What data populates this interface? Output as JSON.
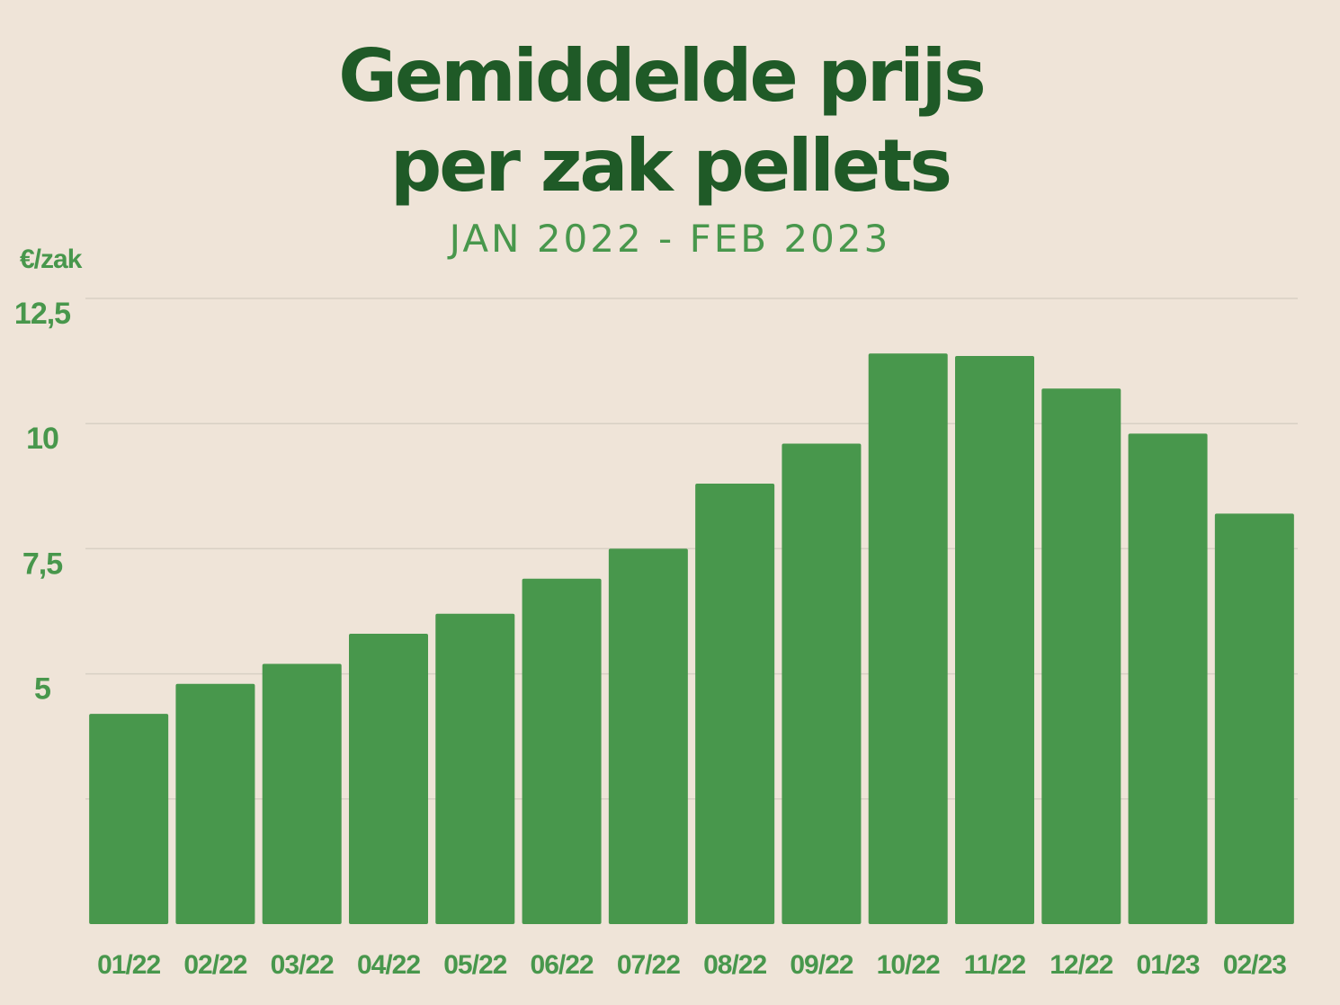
{
  "chart_data": {
    "type": "bar",
    "title_line1": "Gemiddelde prijs",
    "title_line2": "per zak pellets",
    "subtitle": "JAN 2022 - FEB 2023",
    "ylabel": "€/zak",
    "xlabel": "",
    "categories": [
      "01/22",
      "02/22",
      "03/22",
      "04/22",
      "05/22",
      "06/22",
      "07/22",
      "08/22",
      "09/22",
      "10/22",
      "11/22",
      "12/22",
      "01/23",
      "02/23"
    ],
    "values": [
      4.2,
      4.8,
      5.2,
      5.8,
      6.2,
      6.9,
      7.5,
      8.8,
      9.6,
      11.4,
      11.35,
      10.7,
      9.8,
      8.2
    ],
    "ylim": [
      0,
      12.5
    ],
    "yticks": [
      {
        "value": 12.5,
        "label": "12,5"
      },
      {
        "value": 10,
        "label": "10"
      },
      {
        "value": 7.5,
        "label": "7,5"
      },
      {
        "value": 5,
        "label": "5"
      }
    ],
    "gridlines": [
      2.5,
      5,
      7.5,
      10,
      12.5
    ],
    "grid": true,
    "legend": "none",
    "colors": {
      "background": "#efe4d8",
      "bar": "#48974c",
      "title": "#1f5a27",
      "label": "#48974c",
      "grid": "#d8d0c4"
    }
  }
}
